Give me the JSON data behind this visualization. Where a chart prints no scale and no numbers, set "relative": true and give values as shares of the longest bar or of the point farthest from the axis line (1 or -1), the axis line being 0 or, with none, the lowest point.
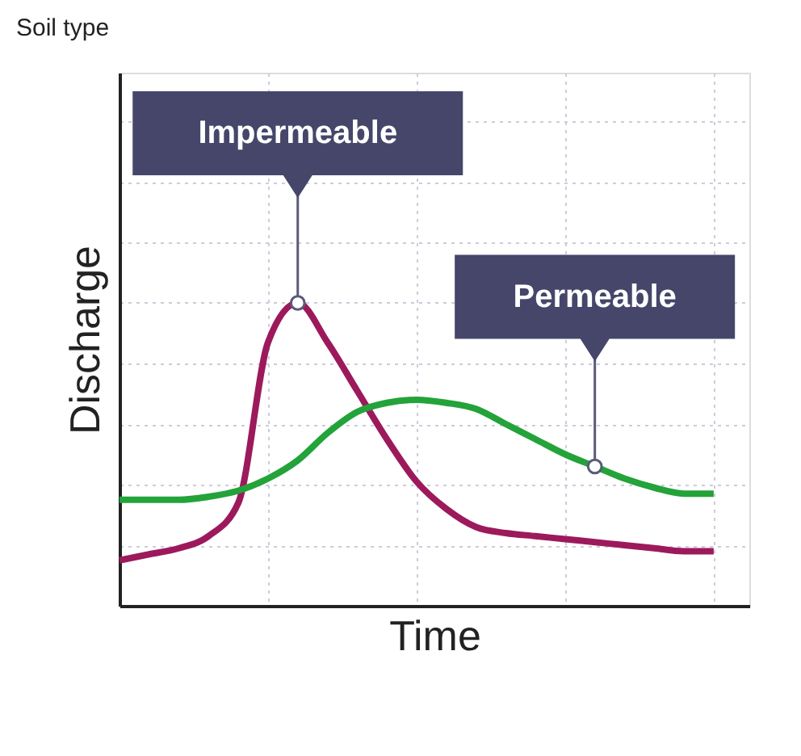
{
  "chart_data": {
    "type": "line",
    "title": "Soil type",
    "xlabel": "Time",
    "ylabel": "Discharge",
    "relative": true,
    "grid": true,
    "categories": [
      null,
      null,
      null,
      null,
      null,
      null,
      null,
      null,
      null,
      null,
      null,
      null,
      null,
      null,
      null,
      null,
      null,
      null,
      null,
      null,
      null
    ],
    "series": [
      {
        "name": "Impermeable",
        "color": "#9c1a5c",
        "values": [
          0.15,
          0.17,
          0.19,
          0.23,
          0.34,
          0.87,
          1.0,
          0.87,
          0.71,
          0.55,
          0.41,
          0.32,
          0.26,
          0.24,
          0.23,
          0.22,
          0.21,
          0.2,
          0.19,
          0.18,
          0.18
        ]
      },
      {
        "name": "Permeable",
        "color": "#23a33a",
        "values": [
          0.35,
          0.35,
          0.35,
          0.36,
          0.38,
          0.42,
          0.48,
          0.57,
          0.64,
          0.67,
          0.68,
          0.67,
          0.65,
          0.6,
          0.55,
          0.5,
          0.46,
          0.42,
          0.39,
          0.37,
          0.37
        ]
      }
    ]
  }
}
